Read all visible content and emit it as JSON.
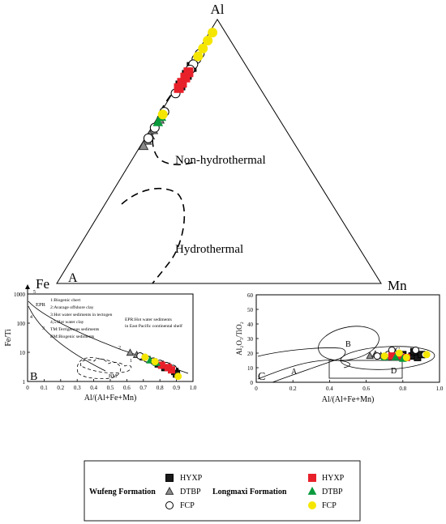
{
  "colors": {
    "wufeng_hyxp": "#1a1a1a",
    "wufeng_dtbp": "#8c8c8c",
    "wufeng_fcp": "#ffffff",
    "longmaxi_hyxp": "#e8202a",
    "longmaxi_dtbp": "#0a9a3c",
    "longmaxi_fcp": "#f5e600"
  },
  "chart_data": [
    {
      "type": "scatter",
      "subtype": "ternary",
      "vertices": [
        "Al",
        "Fe",
        "Mn"
      ],
      "corner_letter": "A",
      "field_labels": [
        "Non-hydrothermal",
        "Hydrothermal"
      ],
      "series": [
        {
          "name": "Wufeng HYXP",
          "points": [
            [
              0.82,
              0.17,
              0.01
            ],
            [
              0.79,
              0.2,
              0.01
            ],
            [
              0.75,
              0.24,
              0.01
            ]
          ]
        },
        {
          "name": "Wufeng DTBP",
          "points": [
            [
              0.62,
              0.37,
              0.01
            ],
            [
              0.58,
              0.41,
              0.01
            ],
            [
              0.56,
              0.43,
              0.01
            ],
            [
              0.54,
              0.45,
              0.01
            ],
            [
              0.52,
              0.47,
              0.01
            ]
          ]
        },
        {
          "name": "Wufeng FCP",
          "points": [
            [
              0.87,
              0.12,
              0.01
            ],
            [
              0.85,
              0.14,
              0.01
            ],
            [
              0.83,
              0.16,
              0.01
            ],
            [
              0.81,
              0.18,
              0.01
            ],
            [
              0.72,
              0.27,
              0.01
            ],
            [
              0.65,
              0.34,
              0.01
            ],
            [
              0.59,
              0.4,
              0.01
            ],
            [
              0.55,
              0.44,
              0.01
            ]
          ]
        },
        {
          "name": "Longmaxi HYXP",
          "points": [
            [
              0.8,
              0.19,
              0.01
            ],
            [
              0.78,
              0.21,
              0.01
            ],
            [
              0.76,
              0.23,
              0.01
            ],
            [
              0.74,
              0.25,
              0.01
            ]
          ]
        },
        {
          "name": "Longmaxi DTBP",
          "points": [
            [
              0.63,
              0.36,
              0.01
            ],
            [
              0.61,
              0.38,
              0.01
            ]
          ]
        },
        {
          "name": "Longmaxi FCP",
          "points": [
            [
              0.95,
              0.04,
              0.01
            ],
            [
              0.92,
              0.07,
              0.01
            ],
            [
              0.89,
              0.1,
              0.01
            ],
            [
              0.86,
              0.13,
              0.01
            ],
            [
              0.64,
              0.35,
              0.01
            ]
          ]
        }
      ]
    },
    {
      "type": "scatter",
      "panel_letter": "B",
      "xlabel": "Al/(Al+Fe+Mn)",
      "ylabel": "Fe/Ti",
      "yscale": "log",
      "xlim": [
        0,
        1.0
      ],
      "ylim": [
        1,
        1000
      ],
      "xticks": [
        "0",
        "0.1",
        "0.2",
        "0.3",
        "0.4",
        "0.5",
        "0.6",
        "0.7",
        "0.8",
        "0.9",
        "1.0"
      ],
      "yticks": [
        "1",
        "10",
        "100",
        "1000"
      ],
      "curve_labels": [
        "5",
        "4",
        "3",
        "2",
        "1",
        "EPR",
        "BM"
      ],
      "legend_notes": [
        "1:Biogenic chert",
        "2:Avarage offshore clay",
        "3:Hot water sediments in tectogen",
        "4,5:Hot water clay",
        "TM:Terrigenous sediments",
        "BM:Biogenic sediments"
      ],
      "note_epr": [
        "EPR:Hot water sediments",
        "in East Pacific continental shelf"
      ],
      "series": [
        {
          "name": "Wufeng HYXP",
          "points": [
            [
              0.79,
              4.0
            ],
            [
              0.83,
              3.0
            ],
            [
              0.89,
              2.2
            ],
            [
              0.9,
              1.8
            ]
          ]
        },
        {
          "name": "Wufeng DTBP",
          "points": [
            [
              0.62,
              9.5
            ],
            [
              0.66,
              8.0
            ],
            [
              0.7,
              6.5
            ],
            [
              0.74,
              5.5
            ],
            [
              0.78,
              4.5
            ],
            [
              0.82,
              3.8
            ],
            [
              0.86,
              3.2
            ]
          ]
        },
        {
          "name": "Wufeng FCP",
          "points": [
            [
              0.68,
              7.5
            ],
            [
              0.72,
              6.0
            ],
            [
              0.76,
              5.0
            ],
            [
              0.8,
              4.2
            ],
            [
              0.84,
              3.5
            ],
            [
              0.88,
              2.8
            ]
          ]
        },
        {
          "name": "Longmaxi HYXP",
          "points": [
            [
              0.81,
              3.6
            ],
            [
              0.85,
              3.0
            ],
            [
              0.87,
              2.5
            ]
          ]
        },
        {
          "name": "Longmaxi DTBP",
          "points": [
            [
              0.74,
              5.2
            ],
            [
              0.78,
              4.3
            ]
          ]
        },
        {
          "name": "Longmaxi FCP",
          "points": [
            [
              0.71,
              6.8
            ],
            [
              0.77,
              4.8
            ],
            [
              0.91,
              1.5
            ]
          ]
        }
      ]
    },
    {
      "type": "scatter",
      "panel_letter": "C",
      "xlabel": "Al/(Al+Fe+Mn)",
      "ylabel": "Al₂O₃/TiO₂",
      "xlim": [
        0,
        1.0
      ],
      "ylim": [
        0,
        60
      ],
      "xticks": [
        "0",
        "0.2",
        "0.4",
        "0.6",
        "0.8",
        "1.0"
      ],
      "yticks": [
        "0",
        "10",
        "20",
        "30",
        "40",
        "50",
        "60"
      ],
      "field_labels": [
        "A",
        "B",
        "C",
        "D"
      ],
      "series": [
        {
          "name": "Wufeng HYXP",
          "points": [
            [
              0.85,
              18
            ],
            [
              0.88,
              17
            ],
            [
              0.9,
              19
            ],
            [
              0.86,
              21
            ],
            [
              0.8,
              19
            ]
          ]
        },
        {
          "name": "Wufeng DTBP",
          "points": [
            [
              0.62,
              18
            ],
            [
              0.65,
              19
            ],
            [
              0.68,
              18
            ],
            [
              0.72,
              17
            ],
            [
              0.75,
              18
            ],
            [
              0.78,
              17
            ]
          ]
        },
        {
          "name": "Wufeng FCP",
          "points": [
            [
              0.66,
              18
            ],
            [
              0.72,
              19
            ],
            [
              0.74,
              22
            ],
            [
              0.8,
              18
            ],
            [
              0.87,
              22
            ],
            [
              0.92,
              19
            ]
          ]
        },
        {
          "name": "Longmaxi HYXP",
          "points": [
            [
              0.74,
              18
            ],
            [
              0.78,
              18
            ],
            [
              0.82,
              17
            ]
          ]
        },
        {
          "name": "Longmaxi DTBP",
          "points": [
            [
              0.7,
              17
            ],
            [
              0.76,
              17
            ],
            [
              0.8,
              16
            ]
          ]
        },
        {
          "name": "Longmaxi FCP",
          "points": [
            [
              0.7,
              18
            ],
            [
              0.78,
              20
            ],
            [
              0.82,
              17
            ],
            [
              0.93,
              19
            ]
          ]
        }
      ]
    }
  ],
  "legend": {
    "wufeng_title": "Wufeng Formation",
    "longmaxi_title": "Longmaxi Formation",
    "labels": [
      "HYXP",
      "DTBP",
      "FCP"
    ]
  }
}
